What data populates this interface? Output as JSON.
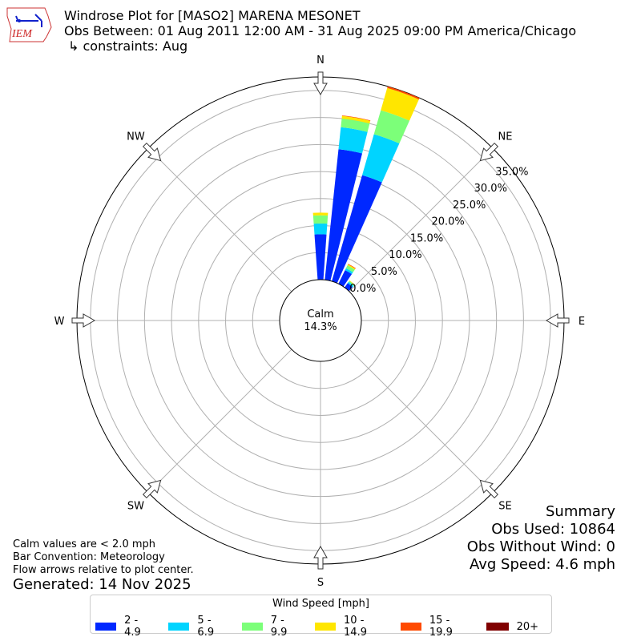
{
  "header": {
    "title": "Windrose Plot for [MASO2] MARENA MESONET",
    "obs_between": "Obs Between: 01 Aug 2011 12:00 AM - 31 Aug 2025 09:00 PM America/Chicago",
    "constraints": "↳ constraints: Aug",
    "logo_text": "IEM"
  },
  "notes": {
    "calm": "Calm values are < 2.0 mph",
    "convention": "Bar Convention: Meteorology",
    "flow": "Flow arrows relative to plot center.",
    "generated": "Generated: 14 Nov 2025"
  },
  "summary": {
    "title": "Summary",
    "obs_used": "Obs Used: 10864",
    "obs_without_wind": "Obs Without Wind: 0",
    "avg_speed": "Avg Speed: 4.6 mph"
  },
  "chart_data": {
    "type": "windrose",
    "calm": {
      "label": "Calm",
      "value": "14.3%"
    },
    "directions": [
      "N",
      "NE",
      "E",
      "SE",
      "S",
      "SW",
      "W",
      "NW"
    ],
    "radial_ticks": [
      "0.0%",
      "5.0%",
      "10.0%",
      "15.0%",
      "20.0%",
      "25.0%",
      "30.0%",
      "35.0%"
    ],
    "radial_tick_values": [
      0,
      5,
      10,
      15,
      20,
      25,
      30,
      35
    ],
    "rmax": 37.5,
    "legend_title": "Wind Speed [mph]",
    "bins": [
      {
        "label": "2 - 4.9",
        "color": "#0028ff"
      },
      {
        "label": "5 - 6.9",
        "color": "#00d4ff"
      },
      {
        "label": "7 - 9.9",
        "color": "#7cff79"
      },
      {
        "label": "10 - 14.9",
        "color": "#ffe600"
      },
      {
        "label": "15 - 19.9",
        "color": "#ff4a00"
      },
      {
        "label": "20+",
        "color": "#800000"
      }
    ],
    "sectors": [
      {
        "dir_deg": 0,
        "values": [
          8.4,
          2.0,
          1.5,
          0.5,
          0,
          0
        ]
      },
      {
        "dir_deg": 10,
        "values": [
          24.3,
          4.1,
          1.6,
          0.5,
          0.1,
          0
        ]
      },
      {
        "dir_deg": 20,
        "values": [
          20.4,
          7.9,
          4.6,
          4.3,
          0.3,
          0.1
        ]
      },
      {
        "dir_deg": 30,
        "values": [
          2.8,
          0.4,
          0.6,
          0.2,
          0.1,
          0
        ]
      },
      {
        "dir_deg": 40,
        "values": [
          1.0,
          0.3,
          0.2,
          0.1,
          0,
          0
        ]
      }
    ]
  }
}
